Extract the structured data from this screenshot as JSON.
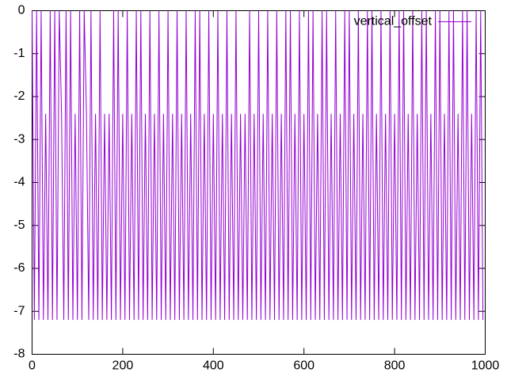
{
  "chart_data": {
    "type": "line",
    "x": [
      0,
      5,
      10,
      15,
      20,
      25,
      30,
      35,
      40,
      45,
      50,
      55,
      60,
      65,
      70,
      75,
      80,
      85,
      90,
      95,
      100,
      105,
      110,
      115,
      120,
      125,
      130,
      135,
      140,
      145,
      150,
      155,
      160,
      165,
      170,
      175,
      180,
      185,
      190,
      195,
      200,
      205,
      210,
      215,
      220,
      225,
      230,
      235,
      240,
      245,
      250,
      255,
      260,
      265,
      270,
      275,
      280,
      285,
      290,
      295,
      300,
      305,
      310,
      315,
      320,
      325,
      330,
      335,
      340,
      345,
      350,
      355,
      360,
      365,
      370,
      375,
      380,
      385,
      390,
      395,
      400,
      405,
      410,
      415,
      420,
      425,
      430,
      435,
      440,
      445,
      450,
      455,
      460,
      465,
      470,
      475,
      480,
      485,
      490,
      495,
      500,
      505,
      510,
      515,
      520,
      525,
      530,
      535,
      540,
      545,
      550,
      555,
      560,
      565,
      570,
      575,
      580,
      585,
      590,
      595,
      600,
      605,
      610,
      615,
      620,
      625,
      630,
      635,
      640,
      645,
      650,
      655,
      660,
      665,
      670,
      675,
      680,
      685,
      690,
      695,
      700,
      705,
      710,
      715,
      720,
      725,
      730,
      735,
      740,
      745,
      750,
      755,
      760,
      765,
      770,
      775,
      780,
      785,
      790,
      795,
      800,
      805,
      810,
      815,
      820,
      825,
      830,
      835,
      840,
      845,
      850,
      855,
      860,
      865,
      870,
      875,
      880,
      885,
      890,
      895,
      900,
      905,
      910,
      915,
      920,
      925,
      930,
      935,
      940,
      945,
      950,
      955,
      960,
      965,
      970,
      975,
      980,
      985,
      990,
      995
    ],
    "series": [
      {
        "name": "vertical_offset",
        "color": "#9400d3",
        "values": [
          0,
          -7.2,
          0,
          -7.2,
          0,
          -7.2,
          -2.4,
          -7.2,
          0,
          -7.2,
          0,
          -7.2,
          0,
          -2.4,
          -7.2,
          0,
          -7.2,
          0,
          -7.2,
          -2.4,
          -7.2,
          0,
          -7.2,
          0,
          -2.4,
          -7.2,
          0,
          -7.2,
          -2.4,
          -7.2,
          0,
          -7.2,
          -2.4,
          -7.2,
          -2.4,
          -7.2,
          0,
          -7.2,
          0,
          -7.2,
          -2.4,
          -7.2,
          0,
          -7.2,
          -2.4,
          -7.2,
          0,
          -7.2,
          0,
          -7.2,
          -2.4,
          -7.2,
          0,
          -7.2,
          -2.4,
          -7.2,
          0,
          -7.2,
          -2.4,
          -7.2,
          0,
          -7.2,
          -2.4,
          -7.2,
          0,
          -7.2,
          -2.4,
          -7.2,
          0,
          -7.2,
          -2.4,
          -7.2,
          0,
          -7.2,
          0,
          -7.2,
          -2.4,
          -7.2,
          0,
          -7.2,
          -2.4,
          -7.2,
          0,
          -7.2,
          -2.4,
          -7.2,
          0,
          -7.2,
          -2.4,
          -7.2,
          0,
          -7.2,
          -2.4,
          -7.2,
          -2.4,
          -7.2,
          0,
          -7.2,
          -2.4,
          -7.2,
          0,
          -7.2,
          -2.4,
          -7.2,
          0,
          -7.2,
          -2.4,
          -7.2,
          0,
          -7.2,
          -2.4,
          -7.2,
          0,
          -7.2,
          0,
          -7.2,
          -2.4,
          -7.2,
          0,
          -7.2,
          -2.4,
          -7.2,
          0,
          -7.2,
          0,
          -7.2,
          -2.4,
          -7.2,
          0,
          -7.2,
          0,
          -7.2,
          -2.4,
          -7.2,
          0,
          -7.2,
          -2.4,
          -7.2,
          0,
          -7.2,
          0,
          -7.2,
          -2.4,
          -7.2,
          0,
          -7.2,
          -2.4,
          -7.2,
          0,
          -7.2,
          0,
          -7.2,
          -2.4,
          -7.2,
          0,
          -7.2,
          -2.4,
          -7.2,
          0,
          -7.2,
          -2.4,
          -7.2,
          0,
          -7.2,
          0,
          -7.2,
          -2.4,
          -7.2,
          0,
          -7.2,
          -2.4,
          -7.2,
          0,
          -7.2,
          0,
          -7.2,
          -2.4,
          -7.2,
          0,
          -7.2,
          0,
          -7.2,
          -2.4,
          -7.2,
          0,
          -7.2,
          0,
          -7.2,
          -2.4,
          -7.2,
          0,
          -7.2,
          0,
          -7.2,
          -2.4,
          -7.2,
          0,
          -7.2,
          0,
          -7.2
        ]
      }
    ],
    "xlim": [
      0,
      1000
    ],
    "xticks": [
      0,
      200,
      400,
      600,
      800,
      1000
    ],
    "ylim": [
      -8,
      0
    ],
    "yticks": [
      0,
      -1,
      -2,
      -3,
      -4,
      -5,
      -6,
      -7,
      -8
    ],
    "legend": "top-right"
  }
}
